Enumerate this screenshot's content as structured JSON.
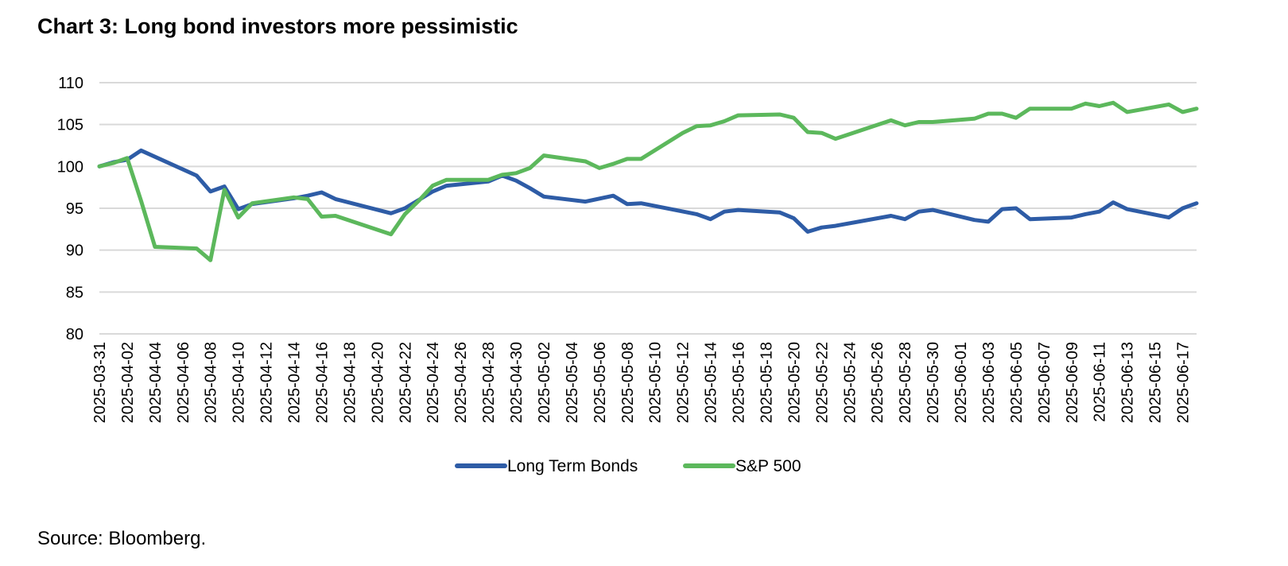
{
  "title": "Chart 3: Long bond investors more pessimistic",
  "source": "Source: Bloomberg.",
  "colors": {
    "bonds": "#2E5CA6",
    "sp500": "#5CB85C",
    "grid": "#D9D9D9"
  },
  "chart_data": {
    "type": "line",
    "title": "Chart 3: Long bond investors more pessimistic",
    "xlabel": "",
    "ylabel": "",
    "ylim": [
      80,
      110
    ],
    "yticks": [
      80,
      85,
      90,
      95,
      100,
      105,
      110
    ],
    "xlim": [
      "2025-03-31",
      "2025-06-18"
    ],
    "xticks": [
      "2025-03-31",
      "2025-04-02",
      "2025-04-04",
      "2025-04-06",
      "2025-04-08",
      "2025-04-10",
      "2025-04-12",
      "2025-04-14",
      "2025-04-16",
      "2025-04-18",
      "2025-04-20",
      "2025-04-22",
      "2025-04-24",
      "2025-04-26",
      "2025-04-28",
      "2025-04-30",
      "2025-05-02",
      "2025-05-04",
      "2025-05-06",
      "2025-05-08",
      "2025-05-10",
      "2025-05-12",
      "2025-05-14",
      "2025-05-16",
      "2025-05-18",
      "2025-05-20",
      "2025-05-22",
      "2025-05-24",
      "2025-05-26",
      "2025-05-28",
      "2025-05-30",
      "2025-06-01",
      "2025-06-03",
      "2025-06-05",
      "2025-06-07",
      "2025-06-09",
      "2025-06-11",
      "2025-06-13",
      "2025-06-15",
      "2025-06-17"
    ],
    "grid": true,
    "legend": "bottom",
    "series": [
      {
        "name": "Long Term Bonds",
        "points": [
          [
            "2025-03-31",
            100.0
          ],
          [
            "2025-04-01",
            100.5
          ],
          [
            "2025-04-02",
            100.8
          ],
          [
            "2025-04-03",
            101.9
          ],
          [
            "2025-04-07",
            98.9
          ],
          [
            "2025-04-08",
            97.0
          ],
          [
            "2025-04-09",
            97.6
          ],
          [
            "2025-04-10",
            94.9
          ],
          [
            "2025-04-11",
            95.5
          ],
          [
            "2025-04-14",
            96.2
          ],
          [
            "2025-04-15",
            96.5
          ],
          [
            "2025-04-16",
            96.9
          ],
          [
            "2025-04-17",
            96.1
          ],
          [
            "2025-04-21",
            94.4
          ],
          [
            "2025-04-22",
            95.0
          ],
          [
            "2025-04-23",
            96.0
          ],
          [
            "2025-04-24",
            97.0
          ],
          [
            "2025-04-25",
            97.7
          ],
          [
            "2025-04-28",
            98.2
          ],
          [
            "2025-04-29",
            98.9
          ],
          [
            "2025-04-30",
            98.3
          ],
          [
            "2025-05-01",
            97.4
          ],
          [
            "2025-05-02",
            96.4
          ],
          [
            "2025-05-05",
            95.8
          ],
          [
            "2025-05-07",
            96.5
          ],
          [
            "2025-05-08",
            95.5
          ],
          [
            "2025-05-09",
            95.6
          ],
          [
            "2025-05-13",
            94.3
          ],
          [
            "2025-05-14",
            93.7
          ],
          [
            "2025-05-15",
            94.6
          ],
          [
            "2025-05-16",
            94.8
          ],
          [
            "2025-05-19",
            94.5
          ],
          [
            "2025-05-20",
            93.8
          ],
          [
            "2025-05-21",
            92.2
          ],
          [
            "2025-05-22",
            92.7
          ],
          [
            "2025-05-23",
            92.9
          ],
          [
            "2025-05-27",
            94.1
          ],
          [
            "2025-05-28",
            93.7
          ],
          [
            "2025-05-29",
            94.6
          ],
          [
            "2025-05-30",
            94.8
          ],
          [
            "2025-06-02",
            93.6
          ],
          [
            "2025-06-03",
            93.4
          ],
          [
            "2025-06-04",
            94.9
          ],
          [
            "2025-06-05",
            95.0
          ],
          [
            "2025-06-06",
            93.7
          ],
          [
            "2025-06-09",
            93.9
          ],
          [
            "2025-06-10",
            94.3
          ],
          [
            "2025-06-11",
            94.6
          ],
          [
            "2025-06-12",
            95.7
          ],
          [
            "2025-06-13",
            94.9
          ],
          [
            "2025-06-16",
            93.9
          ],
          [
            "2025-06-17",
            95.0
          ],
          [
            "2025-06-18",
            95.6
          ]
        ]
      },
      {
        "name": "S&P 500",
        "points": [
          [
            "2025-03-31",
            100.0
          ],
          [
            "2025-04-01",
            100.4
          ],
          [
            "2025-04-02",
            101.0
          ],
          [
            "2025-04-03",
            95.9
          ],
          [
            "2025-04-04",
            90.4
          ],
          [
            "2025-04-07",
            90.2
          ],
          [
            "2025-04-08",
            88.8
          ],
          [
            "2025-04-09",
            97.2
          ],
          [
            "2025-04-10",
            93.9
          ],
          [
            "2025-04-11",
            95.6
          ],
          [
            "2025-04-14",
            96.3
          ],
          [
            "2025-04-15",
            96.1
          ],
          [
            "2025-04-16",
            94.0
          ],
          [
            "2025-04-17",
            94.1
          ],
          [
            "2025-04-21",
            91.9
          ],
          [
            "2025-04-22",
            94.3
          ],
          [
            "2025-04-23",
            95.9
          ],
          [
            "2025-04-24",
            97.7
          ],
          [
            "2025-04-25",
            98.4
          ],
          [
            "2025-04-28",
            98.4
          ],
          [
            "2025-04-29",
            99.0
          ],
          [
            "2025-04-30",
            99.2
          ],
          [
            "2025-05-01",
            99.8
          ],
          [
            "2025-05-02",
            101.3
          ],
          [
            "2025-05-05",
            100.6
          ],
          [
            "2025-05-06",
            99.8
          ],
          [
            "2025-05-07",
            100.3
          ],
          [
            "2025-05-08",
            100.9
          ],
          [
            "2025-05-09",
            100.9
          ],
          [
            "2025-05-12",
            104.0
          ],
          [
            "2025-05-13",
            104.8
          ],
          [
            "2025-05-14",
            104.9
          ],
          [
            "2025-05-15",
            105.4
          ],
          [
            "2025-05-16",
            106.1
          ],
          [
            "2025-05-19",
            106.2
          ],
          [
            "2025-05-20",
            105.8
          ],
          [
            "2025-05-21",
            104.1
          ],
          [
            "2025-05-22",
            104.0
          ],
          [
            "2025-05-23",
            103.3
          ],
          [
            "2025-05-27",
            105.5
          ],
          [
            "2025-05-28",
            104.9
          ],
          [
            "2025-05-29",
            105.3
          ],
          [
            "2025-05-30",
            105.3
          ],
          [
            "2025-06-02",
            105.7
          ],
          [
            "2025-06-03",
            106.3
          ],
          [
            "2025-06-04",
            106.3
          ],
          [
            "2025-06-05",
            105.8
          ],
          [
            "2025-06-06",
            106.9
          ],
          [
            "2025-06-09",
            106.9
          ],
          [
            "2025-06-10",
            107.5
          ],
          [
            "2025-06-11",
            107.2
          ],
          [
            "2025-06-12",
            107.6
          ],
          [
            "2025-06-13",
            106.5
          ],
          [
            "2025-06-16",
            107.4
          ],
          [
            "2025-06-17",
            106.5
          ],
          [
            "2025-06-18",
            106.9
          ]
        ]
      }
    ]
  }
}
